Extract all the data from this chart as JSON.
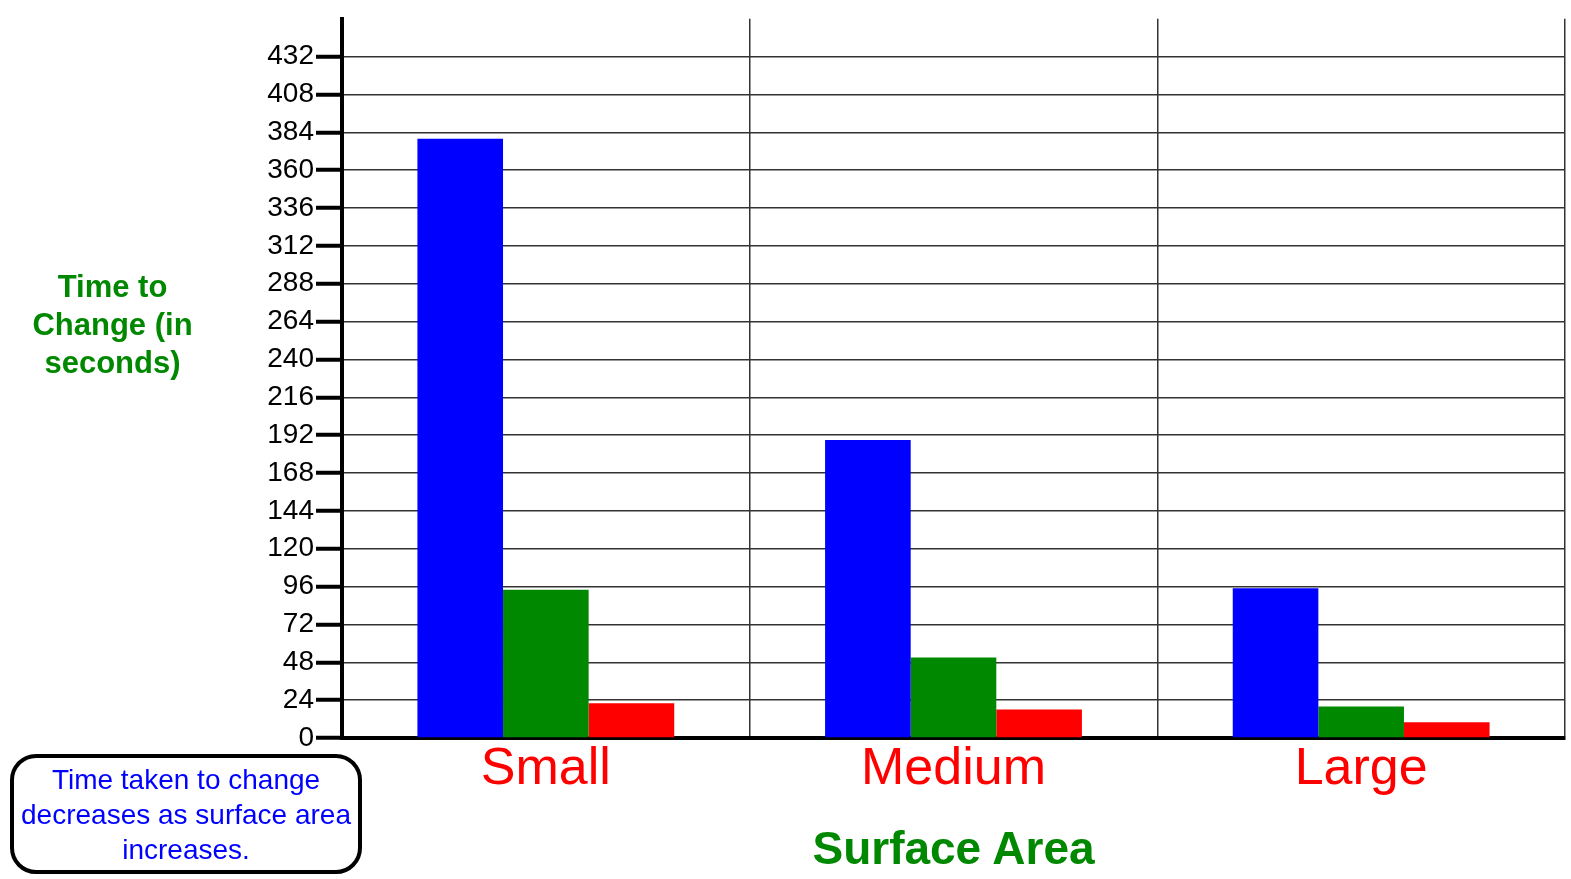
{
  "chart_data": {
    "type": "bar",
    "xlabel": "Surface Area",
    "ylabel": "Time to Change (in seconds)",
    "categories": [
      "Small",
      "Medium",
      "Large"
    ],
    "series": [
      {
        "color": "#0000ff",
        "values": [
          380,
          189,
          95
        ]
      },
      {
        "color": "#008800",
        "values": [
          94,
          51,
          20
        ]
      },
      {
        "color": "#ff0000",
        "values": [
          22,
          18,
          10
        ]
      }
    ],
    "ylim": [
      0,
      456
    ],
    "yticks": [
      0,
      24,
      48,
      72,
      96,
      120,
      144,
      168,
      192,
      216,
      240,
      264,
      288,
      312,
      336,
      360,
      384,
      408,
      432
    ],
    "grid": true,
    "legend": false,
    "annotations": [
      "Time taken to change decreases as surface area increases."
    ]
  }
}
